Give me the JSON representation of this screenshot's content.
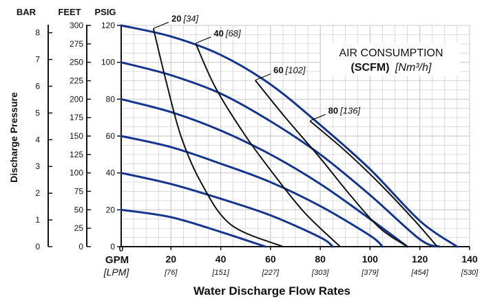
{
  "chart_data": {
    "type": "line",
    "title": "AIR CONSUMPTION",
    "subtitle_bold": "(SCFM)",
    "subtitle_italic": "[Nm³/h]",
    "xlabel": "Water Discharge Flow Rates",
    "ylabel": "Discharge Pressure",
    "x_unit_primary": "GPM",
    "x_unit_secondary": "[LPM]",
    "y_units": {
      "bar": "BAR",
      "feet": "FEET",
      "psig": "PSIG"
    },
    "xlim": [
      0,
      140
    ],
    "ylim": [
      0,
      120
    ],
    "grid": true,
    "x_ticks": [
      {
        "gpm": "20",
        "lpm": "[76]"
      },
      {
        "gpm": "40",
        "lpm": "[151]"
      },
      {
        "gpm": "60",
        "lpm": "[227]"
      },
      {
        "gpm": "80",
        "lpm": "[303]"
      },
      {
        "gpm": "100",
        "lpm": "[379]"
      },
      {
        "gpm": "120",
        "lpm": "[454]"
      },
      {
        "gpm": "140",
        "lpm": "[530]"
      }
    ],
    "x_zero_label": "0",
    "psig_ticks": [
      "0",
      "20",
      "40",
      "60",
      "80",
      "100",
      "120"
    ],
    "feet_ticks": [
      "0",
      "25",
      "50",
      "75",
      "100",
      "125",
      "150",
      "175",
      "200",
      "225",
      "250",
      "275",
      "300"
    ],
    "bar_ticks": [
      "0",
      "1",
      "2",
      "3",
      "4",
      "5",
      "6",
      "7",
      "8"
    ],
    "inlet_pressure_series": [
      {
        "start_psig": 120,
        "points": [
          [
            0,
            120
          ],
          [
            20,
            114
          ],
          [
            40,
            104
          ],
          [
            60,
            88
          ],
          [
            80,
            66
          ],
          [
            100,
            42
          ],
          [
            120,
            14
          ],
          [
            135,
            0
          ]
        ]
      },
      {
        "start_psig": 100,
        "points": [
          [
            0,
            100
          ],
          [
            20,
            93
          ],
          [
            40,
            83
          ],
          [
            60,
            68
          ],
          [
            80,
            50
          ],
          [
            100,
            28
          ],
          [
            120,
            4
          ],
          [
            128,
            0
          ]
        ]
      },
      {
        "start_psig": 80,
        "points": [
          [
            0,
            80
          ],
          [
            20,
            73
          ],
          [
            40,
            63
          ],
          [
            60,
            50
          ],
          [
            80,
            34
          ],
          [
            100,
            15
          ],
          [
            115,
            0
          ]
        ]
      },
      {
        "start_psig": 60,
        "points": [
          [
            0,
            60
          ],
          [
            20,
            54
          ],
          [
            40,
            45
          ],
          [
            60,
            35
          ],
          [
            80,
            22
          ],
          [
            100,
            6
          ],
          [
            105,
            0
          ]
        ]
      },
      {
        "start_psig": 40,
        "points": [
          [
            0,
            40
          ],
          [
            20,
            34
          ],
          [
            40,
            26
          ],
          [
            60,
            17
          ],
          [
            80,
            5
          ],
          [
            85,
            0
          ]
        ]
      },
      {
        "start_psig": 20,
        "points": [
          [
            0,
            20
          ],
          [
            20,
            16
          ],
          [
            40,
            8
          ],
          [
            58,
            0
          ]
        ]
      }
    ],
    "air_consumption_series": [
      {
        "label_bold": "20",
        "label_italic": "[34]",
        "points": [
          [
            13,
            118
          ],
          [
            18,
            90
          ],
          [
            24,
            60
          ],
          [
            32,
            35
          ],
          [
            44,
            12
          ],
          [
            65,
            0
          ]
        ]
      },
      {
        "label_bold": "40",
        "label_italic": "[68]",
        "points": [
          [
            30,
            110
          ],
          [
            38,
            86
          ],
          [
            50,
            60
          ],
          [
            62,
            38
          ],
          [
            74,
            18
          ],
          [
            88,
            0
          ]
        ]
      },
      {
        "label_bold": "60",
        "label_italic": "[102]",
        "points": [
          [
            54,
            90
          ],
          [
            66,
            70
          ],
          [
            80,
            48
          ],
          [
            92,
            28
          ],
          [
            104,
            10
          ],
          [
            115,
            0
          ]
        ]
      },
      {
        "label_bold": "80",
        "label_italic": "[136]",
        "points": [
          [
            76,
            68
          ],
          [
            90,
            52
          ],
          [
            104,
            34
          ],
          [
            118,
            14
          ],
          [
            127,
            0
          ]
        ]
      }
    ],
    "colors": {
      "pressure_curve": "#12358f",
      "air_curve": "#111111",
      "grid": "#c9c9c9",
      "text": "#111111"
    }
  }
}
